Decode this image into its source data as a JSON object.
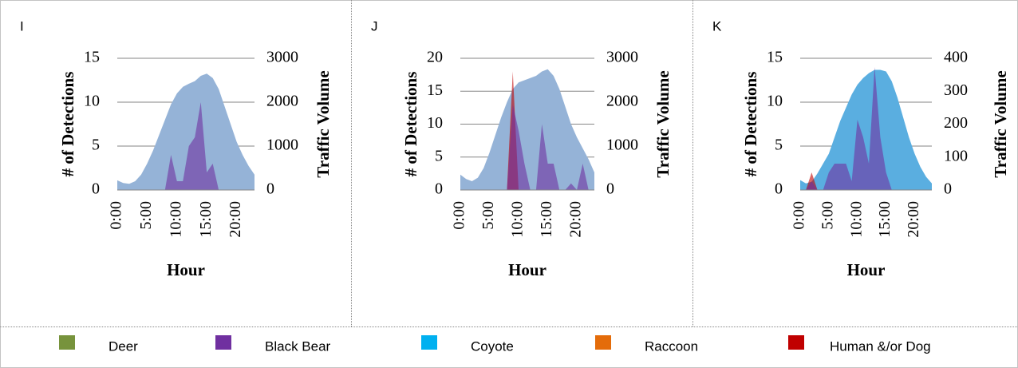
{
  "chart_data": [
    {
      "type": "area",
      "panel_label": "I",
      "ylabel": "# of Detections",
      "y2label": "Traffic Volume",
      "xlabel": "Hour",
      "x": [
        0,
        1,
        2,
        3,
        4,
        5,
        6,
        7,
        8,
        9,
        10,
        11,
        12,
        13,
        14,
        15,
        16,
        17,
        18,
        19,
        20,
        21,
        22,
        23
      ],
      "xlim": [
        0,
        23
      ],
      "xticks": [
        {
          "value": 0,
          "label": "0:00"
        },
        {
          "value": 5,
          "label": "5:00"
        },
        {
          "value": 10,
          "label": "10:00"
        },
        {
          "value": 15,
          "label": "15:00"
        },
        {
          "value": 20,
          "label": "20:00"
        }
      ],
      "ylim": [
        0,
        15
      ],
      "yticks": [
        0,
        5,
        10,
        15
      ],
      "y2lim": [
        0,
        3000
      ],
      "y2ticks": [
        0,
        1000,
        2000,
        3000
      ],
      "grid": true,
      "series": [
        {
          "color": "#95b3d7",
          "axis": "y2",
          "values": [
            220,
            160,
            140,
            200,
            350,
            600,
            900,
            1250,
            1600,
            1950,
            2200,
            2350,
            2420,
            2480,
            2600,
            2650,
            2550,
            2300,
            1900,
            1500,
            1100,
            800,
            550,
            350
          ]
        },
        {
          "name": "Black Bear",
          "color": "#7030a0",
          "values": [
            0,
            0,
            0,
            0,
            0,
            0,
            0,
            0,
            0,
            4,
            1,
            1,
            5,
            6,
            10,
            2,
            3,
            0,
            0,
            0,
            0,
            0,
            0,
            0
          ]
        }
      ]
    },
    {
      "type": "area",
      "panel_label": "J",
      "ylabel": "# of Detections",
      "y2label": "Traffic Volume",
      "xlabel": "Hour",
      "x": [
        0,
        1,
        2,
        3,
        4,
        5,
        6,
        7,
        8,
        9,
        10,
        11,
        12,
        13,
        14,
        15,
        16,
        17,
        18,
        19,
        20,
        21,
        22,
        23
      ],
      "xlim": [
        0,
        23
      ],
      "xticks": [
        {
          "value": 0,
          "label": "0:00"
        },
        {
          "value": 5,
          "label": "5:00"
        },
        {
          "value": 10,
          "label": "10:00"
        },
        {
          "value": 15,
          "label": "15:00"
        },
        {
          "value": 20,
          "label": "20:00"
        }
      ],
      "ylim": [
        0,
        20
      ],
      "yticks": [
        0,
        5,
        10,
        15,
        20
      ],
      "y2lim": [
        0,
        3000
      ],
      "y2ticks": [
        0,
        1000,
        2000,
        3000
      ],
      "grid": true,
      "series": [
        {
          "color": "#95b3d7",
          "axis": "y2",
          "values": [
            350,
            250,
            200,
            280,
            500,
            850,
            1250,
            1650,
            2000,
            2300,
            2450,
            2500,
            2550,
            2600,
            2700,
            2750,
            2600,
            2300,
            1900,
            1500,
            1200,
            950,
            700,
            400
          ]
        },
        {
          "name": "Human &/or Dog",
          "color": "#c00000",
          "values": [
            0,
            0,
            0,
            0,
            0,
            0,
            0,
            0,
            0,
            18,
            0,
            0,
            0,
            0,
            0,
            0,
            0,
            0,
            0,
            0,
            0,
            0,
            0,
            0
          ]
        },
        {
          "name": "Black Bear",
          "color": "#7030a0",
          "values": [
            0,
            0,
            0,
            0,
            0,
            0,
            0,
            0,
            0,
            13,
            9,
            4,
            0,
            0,
            10,
            4,
            4,
            0,
            0,
            1,
            0,
            4,
            0,
            0
          ]
        }
      ]
    },
    {
      "type": "area",
      "panel_label": "K",
      "ylabel": "# of Detections",
      "y2label": "Traffic Volume",
      "xlabel": "Hour",
      "x": [
        0,
        1,
        2,
        3,
        4,
        5,
        6,
        7,
        8,
        9,
        10,
        11,
        12,
        13,
        14,
        15,
        16,
        17,
        18,
        19,
        20,
        21,
        22,
        23
      ],
      "xlim": [
        0,
        23
      ],
      "xticks": [
        {
          "value": 0,
          "label": "0:00"
        },
        {
          "value": 5,
          "label": "5:00"
        },
        {
          "value": 10,
          "label": "10:00"
        },
        {
          "value": 15,
          "label": "15:00"
        },
        {
          "value": 20,
          "label": "20:00"
        }
      ],
      "ylim": [
        0,
        15
      ],
      "yticks": [
        0,
        5,
        10,
        15
      ],
      "y2lim": [
        0,
        400
      ],
      "y2ticks": [
        0,
        100,
        200,
        300,
        400
      ],
      "grid": true,
      "series": [
        {
          "color": "#5aaee0",
          "axis": "y2",
          "values": [
            30,
            20,
            25,
            50,
            80,
            110,
            160,
            210,
            250,
            290,
            320,
            340,
            355,
            365,
            365,
            360,
            330,
            280,
            220,
            160,
            110,
            70,
            40,
            20
          ]
        },
        {
          "name": "Human &/or Dog",
          "color": "#c00000",
          "values": [
            0,
            0,
            2,
            0,
            0,
            0,
            0,
            0,
            0,
            0,
            0,
            0,
            0,
            0,
            0,
            0,
            0,
            0,
            0,
            0,
            0,
            0,
            0,
            0
          ]
        },
        {
          "name": "Black Bear",
          "color": "#7030a0",
          "values": [
            0,
            0,
            1,
            0,
            0,
            2,
            3,
            3,
            3,
            1,
            8,
            6,
            3,
            14,
            6,
            2,
            0,
            0,
            0,
            0,
            0,
            0,
            0,
            0
          ]
        }
      ]
    }
  ],
  "legend": [
    {
      "name": "Deer",
      "color": "#77933c"
    },
    {
      "name": "Black Bear",
      "color": "#7030a0"
    },
    {
      "name": "Coyote",
      "color": "#00b0f0"
    },
    {
      "name": "Raccoon",
      "color": "#e46c0a"
    },
    {
      "name": "Human &/or Dog",
      "color": "#c00000"
    }
  ]
}
